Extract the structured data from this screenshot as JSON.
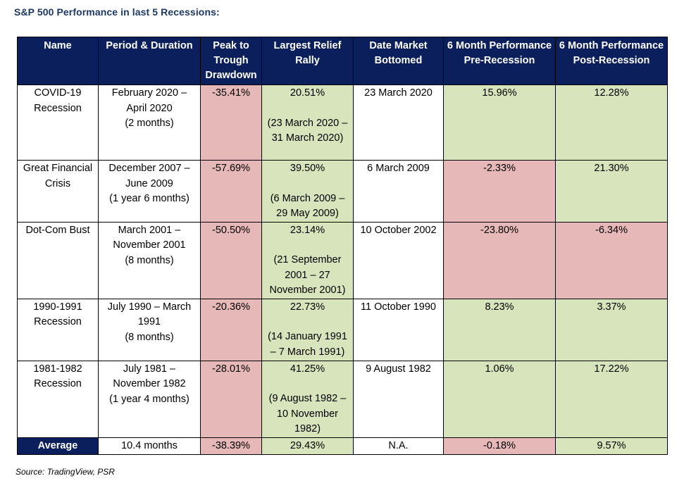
{
  "title": "S&P 500 Performance in last 5 Recessions:",
  "headers": [
    "Name",
    "Period & Duration",
    "Peak to Trough Drawdown",
    "Largest Relief Rally",
    "Date Market Bottomed",
    "6 Month Performance Pre-Recession",
    "6 Month Performance Post-Recession"
  ],
  "rows": [
    {
      "name": "COVID-19 Recession",
      "period": "February 2020 – April 2020",
      "duration": "(2 months)",
      "drawdown": "-35.41%",
      "rally": "20.51%",
      "rally_range": "(23 March 2020 – 31 March 2020)",
      "bottom": "23 March 2020",
      "pre": "15.96%",
      "post": "12.28%"
    },
    {
      "name": "Great Financial Crisis",
      "period": "December 2007 – June 2009",
      "duration": "(1 year 6 months)",
      "drawdown": "-57.69%",
      "rally": "39.50%",
      "rally_range": "(6 March 2009 – 29 May 2009)",
      "bottom": "6 March 2009",
      "pre": "-2.33%",
      "post": "21.30%"
    },
    {
      "name": "Dot-Com Bust",
      "period": "March 2001 – November 2001",
      "duration": "(8 months)",
      "drawdown": "-50.50%",
      "rally": "23.14%",
      "rally_range": "(21 September 2001 – 27 November 2001)",
      "bottom": "10 October 2002",
      "pre": "-23.80%",
      "post": "-6.34%"
    },
    {
      "name": "1990-1991 Recession",
      "period": "July 1990 – March 1991",
      "duration": "(8 months)",
      "drawdown": "-20.36%",
      "rally": "22.73%",
      "rally_range": "(14 January 1991 – 7 March 1991)",
      "bottom": "11 October 1990",
      "pre": "8.23%",
      "post": "3.37%"
    },
    {
      "name": "1981-1982 Recession",
      "period": "July 1981 – November 1982",
      "duration": "(1 year 4 months)",
      "drawdown": "-28.01%",
      "rally": "41.25%",
      "rally_range": "(9 August 1982 – 10 November 1982)",
      "bottom": "9 August 1982",
      "pre": "1.06%",
      "post": "17.22%"
    }
  ],
  "average": {
    "label": "Average",
    "period": "10.4 months",
    "drawdown": "-38.39%",
    "rally": "29.43%",
    "bottom": "N.A.",
    "pre": "-0.18%",
    "post": "9.57%"
  },
  "source": "Source: TradingView, PSR",
  "colors": {
    "header_bg": "#0b1f5c",
    "negative_bg": "#e6b8b7",
    "positive_bg": "#d8e4bc",
    "title_color": "#1f3864"
  }
}
